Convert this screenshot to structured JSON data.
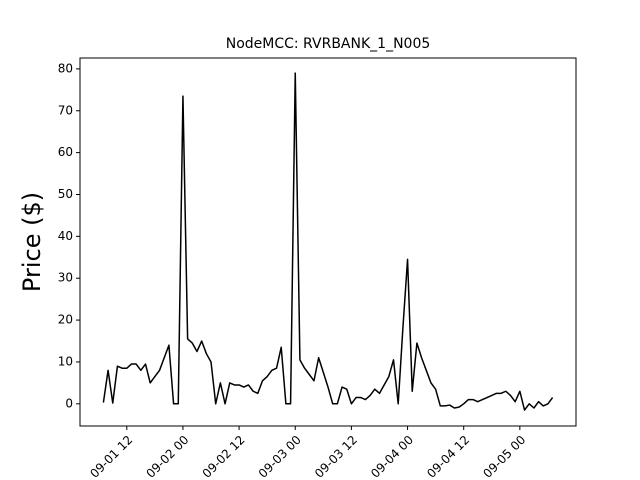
{
  "chart_data": {
    "type": "line",
    "title": "NodeMCC: RVRBANK_1_N005",
    "y_label": "Price ($)",
    "color": "#000000",
    "x": [
      "09-01 07",
      "09-01 08",
      "09-01 09",
      "09-01 10",
      "09-01 11",
      "09-01 12",
      "09-01 13",
      "09-01 14",
      "09-01 15",
      "09-01 16",
      "09-01 17",
      "09-01 18",
      "09-01 19",
      "09-01 20",
      "09-01 21",
      "09-01 22",
      "09-01 23",
      "09-02 00",
      "09-02 01",
      "09-02 02",
      "09-02 03",
      "09-02 04",
      "09-02 05",
      "09-02 06",
      "09-02 07",
      "09-02 08",
      "09-02 09",
      "09-02 10",
      "09-02 11",
      "09-02 12",
      "09-02 13",
      "09-02 14",
      "09-02 15",
      "09-02 16",
      "09-02 17",
      "09-02 18",
      "09-02 19",
      "09-02 20",
      "09-02 21",
      "09-02 22",
      "09-02 23",
      "09-03 00",
      "09-03 01",
      "09-03 02",
      "09-03 03",
      "09-03 04",
      "09-03 05",
      "09-03 06",
      "09-03 07",
      "09-03 08",
      "09-03 09",
      "09-03 10",
      "09-03 11",
      "09-03 12",
      "09-03 13",
      "09-03 14",
      "09-03 15",
      "09-03 16",
      "09-03 17",
      "09-03 18",
      "09-03 19",
      "09-03 20",
      "09-03 21",
      "09-03 22",
      "09-03 23",
      "09-04 00",
      "09-04 01",
      "09-04 02",
      "09-04 03",
      "09-04 04",
      "09-04 05",
      "09-04 06",
      "09-04 07",
      "09-04 08",
      "09-04 09",
      "09-04 10",
      "09-04 11",
      "09-04 12",
      "09-04 13",
      "09-04 14",
      "09-04 15",
      "09-04 16",
      "09-04 17",
      "09-04 18",
      "09-04 19",
      "09-04 20",
      "09-04 21",
      "09-04 22",
      "09-04 23",
      "09-05 00",
      "09-05 01",
      "09-05 02",
      "09-05 03",
      "09-05 04",
      "09-05 05",
      "09-05 06",
      "09-05 07"
    ],
    "values": [
      0.3,
      8,
      0.2,
      9,
      8.5,
      8.5,
      9.5,
      9.5,
      8,
      9.5,
      5,
      6.5,
      8,
      11,
      14,
      0,
      0,
      73.5,
      15.5,
      14.5,
      12.5,
      15,
      12,
      10,
      0,
      5,
      0,
      5,
      4.5,
      4.5,
      4,
      4.5,
      3,
      2.5,
      5.5,
      6.5,
      8,
      8.5,
      13.5,
      0,
      0,
      79,
      10.5,
      8.5,
      7,
      5.5,
      11,
      7.5,
      4,
      0,
      0,
      4,
      3.5,
      0,
      1.5,
      1.5,
      1,
      2,
      3.5,
      2.5,
      4.5,
      6.5,
      10.5,
      0,
      18,
      34.5,
      3,
      14.5,
      11,
      8,
      5,
      3.5,
      -0.5,
      -0.5,
      -0.3,
      -1,
      -0.8,
      0,
      1,
      1,
      0.5,
      1,
      1.5,
      2,
      2.5,
      2.5,
      3,
      2,
      0.5,
      3,
      -1.5,
      0,
      -1,
      0.5,
      -0.5,
      0,
      1.5
    ],
    "xlim": [
      "09-01 02",
      "09-05 12"
    ],
    "xticks": [
      "09-01 12",
      "09-02 00",
      "09-02 12",
      "09-03 00",
      "09-03 12",
      "09-04 00",
      "09-04 12",
      "09-05 00"
    ],
    "ylim": [
      -5.3,
      82.6
    ],
    "yticks": [
      0,
      10,
      20,
      30,
      40,
      50,
      60,
      70,
      80
    ]
  }
}
